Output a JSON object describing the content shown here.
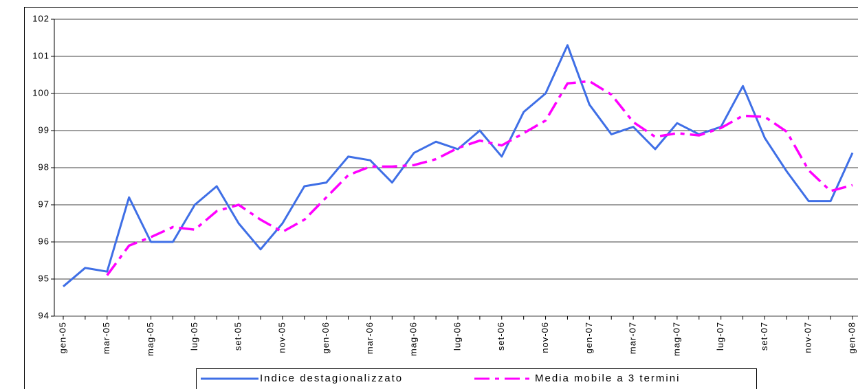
{
  "chart_data": {
    "type": "line",
    "categories": [
      "gen-05",
      null,
      "mar-05",
      null,
      "mag-05",
      null,
      "lug-05",
      null,
      "set-05",
      null,
      "nov-05",
      null,
      "gen-06",
      null,
      "mar-06",
      null,
      "mag-06",
      null,
      "lug-06",
      null,
      "set-06",
      null,
      "nov-06",
      null,
      "gen-07",
      null,
      "mar-07",
      null,
      "mag-07",
      null,
      "lug-07",
      null,
      "set-07",
      null,
      "nov-07",
      null,
      "gen-08"
    ],
    "series": [
      {
        "name": "Indice destagionalizzato",
        "color": "#3f6fe6",
        "values": [
          94.8,
          95.3,
          95.2,
          97.2,
          96.0,
          96.0,
          97.0,
          97.5,
          96.5,
          95.8,
          96.5,
          97.5,
          97.6,
          98.3,
          98.2,
          97.6,
          98.4,
          98.7,
          98.5,
          99.0,
          98.3,
          99.5,
          100.0,
          101.3,
          99.7,
          98.9,
          99.1,
          98.5,
          99.2,
          98.9,
          99.1,
          100.2,
          98.8,
          97.9,
          97.1,
          97.1,
          98.4
        ]
      },
      {
        "name": "Media mobile a 3 termini",
        "color": "#ff00ff",
        "dashed": true,
        "values": [
          null,
          null,
          95.1,
          95.9,
          96.13,
          96.4,
          96.33,
          96.83,
          97.0,
          96.6,
          96.27,
          96.6,
          97.2,
          97.8,
          98.03,
          98.03,
          98.07,
          98.23,
          98.53,
          98.73,
          98.6,
          98.93,
          99.27,
          100.27,
          100.33,
          99.97,
          99.23,
          98.83,
          98.93,
          98.87,
          99.07,
          99.4,
          99.37,
          98.97,
          97.93,
          97.37,
          97.53
        ]
      }
    ],
    "ylim": [
      94,
      102
    ],
    "yticks": [
      94,
      95,
      96,
      97,
      98,
      99,
      100,
      101,
      102
    ],
    "grid": true,
    "legend": "bottom"
  }
}
